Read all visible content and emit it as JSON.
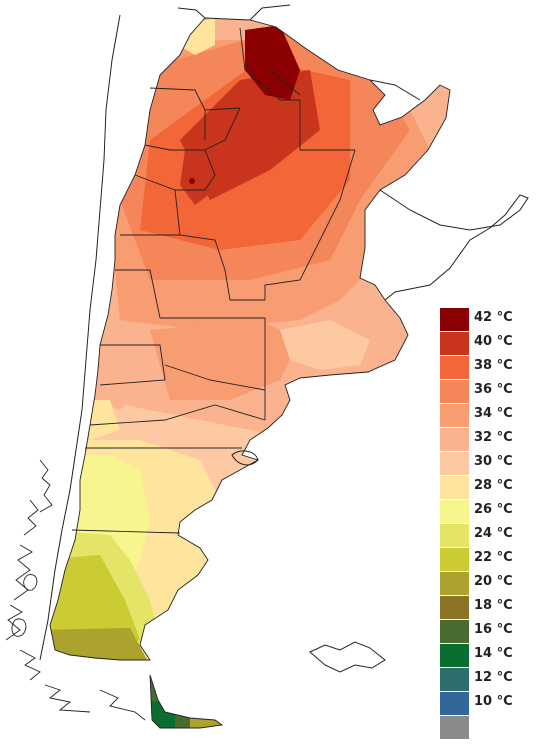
{
  "legend": {
    "items": [
      {
        "label": "42 °C",
        "color": "#8b0000"
      },
      {
        "label": "40 °C",
        "color": "#c8341c"
      },
      {
        "label": "38 °C",
        "color": "#f26638"
      },
      {
        "label": "36 °C",
        "color": "#f5865a"
      },
      {
        "label": "34 °C",
        "color": "#f89c72"
      },
      {
        "label": "32 °C",
        "color": "#fab38e"
      },
      {
        "label": "30 °C",
        "color": "#fcc9a2"
      },
      {
        "label": "28 °C",
        "color": "#fee49c"
      },
      {
        "label": "26 °C",
        "color": "#f7f58e"
      },
      {
        "label": "24 °C",
        "color": "#e4e467"
      },
      {
        "label": "22 °C",
        "color": "#cbcb34"
      },
      {
        "label": "20 °C",
        "color": "#aca22e"
      },
      {
        "label": "18 °C",
        "color": "#8c7325"
      },
      {
        "label": "16 °C",
        "color": "#4a6b30"
      },
      {
        "label": "14 °C",
        "color": "#0a6e30"
      },
      {
        "label": "12 °C",
        "color": "#2e6f6e"
      },
      {
        "label": "10 °C",
        "color": "#336699"
      },
      {
        "label": "",
        "color": "#8a8a8a"
      }
    ]
  }
}
